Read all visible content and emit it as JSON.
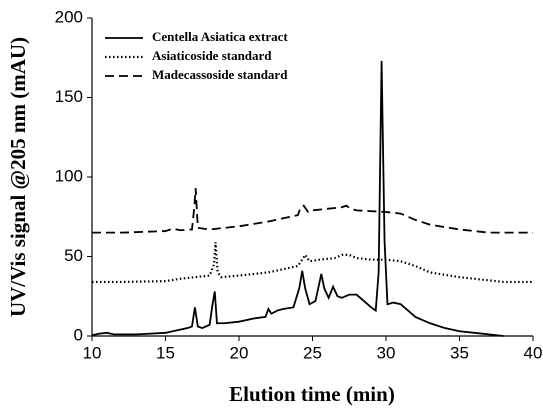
{
  "chart_data": {
    "type": "line",
    "xlabel": "Elution time (min)",
    "ylabel": "UV/Vis signal @205 nm (mAU)",
    "xlim": [
      10,
      40
    ],
    "xticks": [
      10,
      15,
      20,
      25,
      30,
      35,
      40
    ],
    "ylim": [
      0,
      200
    ],
    "yticks": [
      0,
      50,
      100,
      150,
      200
    ],
    "legend": "upper-left",
    "series": [
      {
        "name": "Centella Asiatica extract",
        "color": "#000000",
        "dash": "solid",
        "x": [
          10,
          10.5,
          11,
          11.5,
          12,
          13,
          14,
          15,
          15.5,
          16,
          16.5,
          16.8,
          17.0,
          17.2,
          17.5,
          18,
          18.2,
          18.35,
          18.5,
          19,
          20,
          21,
          21.8,
          22.0,
          22.2,
          22.6,
          23,
          23.7,
          24.1,
          24.3,
          24.5,
          24.8,
          25.2,
          25.6,
          25.8,
          26.1,
          26.4,
          26.7,
          27,
          27.5,
          28,
          28.5,
          29,
          29.3,
          29.5,
          29.7,
          29.9,
          30.1,
          30.5,
          31,
          31.5,
          32,
          33,
          34,
          35,
          36,
          37,
          38
        ],
        "values": [
          0.5,
          1.5,
          2,
          1,
          1,
          1,
          1.5,
          2,
          3,
          4,
          5,
          6,
          18,
          6,
          5,
          7,
          20,
          28,
          8,
          8,
          9,
          11,
          12,
          17,
          14,
          16,
          17,
          18,
          30,
          41,
          30,
          20,
          22,
          39,
          30,
          24,
          31,
          25,
          24,
          26,
          26,
          22,
          18,
          16,
          40,
          173,
          60,
          20,
          21,
          20,
          16,
          12,
          8,
          5,
          3,
          2,
          1,
          0
        ]
      },
      {
        "name": "Asiaticoside standard",
        "color": "#000000",
        "dash": "dotted",
        "x": [
          10,
          12,
          15,
          16,
          17,
          18,
          18.3,
          18.4,
          18.55,
          18.8,
          20,
          22,
          23,
          24,
          24.3,
          24.5,
          24.8,
          25.5,
          26.5,
          27,
          27.5,
          28,
          29,
          30,
          31,
          32,
          33,
          35,
          37,
          38,
          40
        ],
        "values": [
          34,
          34,
          34.5,
          36,
          37,
          38,
          45,
          59,
          40,
          37,
          38,
          40,
          42,
          44,
          48,
          51,
          47,
          48,
          49,
          51,
          51,
          49,
          48,
          48,
          47,
          44,
          40,
          37,
          35,
          34,
          34
        ]
      },
      {
        "name": "Madecassoside standard",
        "color": "#000000",
        "dash": "dashed",
        "x": [
          10,
          12,
          15,
          15.5,
          16,
          16.8,
          16.95,
          17.05,
          17.2,
          18,
          20,
          22,
          24,
          24.2,
          24.4,
          24.7,
          25,
          26,
          27,
          27.3,
          27.6,
          28,
          30,
          31,
          32,
          33,
          35,
          37,
          40
        ],
        "values": [
          65,
          65,
          66,
          67.5,
          66.5,
          67,
          80,
          93,
          68,
          67,
          69,
          72,
          76,
          81,
          82,
          78,
          79,
          80,
          81,
          82,
          80,
          79,
          78,
          77,
          73,
          70,
          67,
          65,
          65
        ]
      }
    ]
  }
}
